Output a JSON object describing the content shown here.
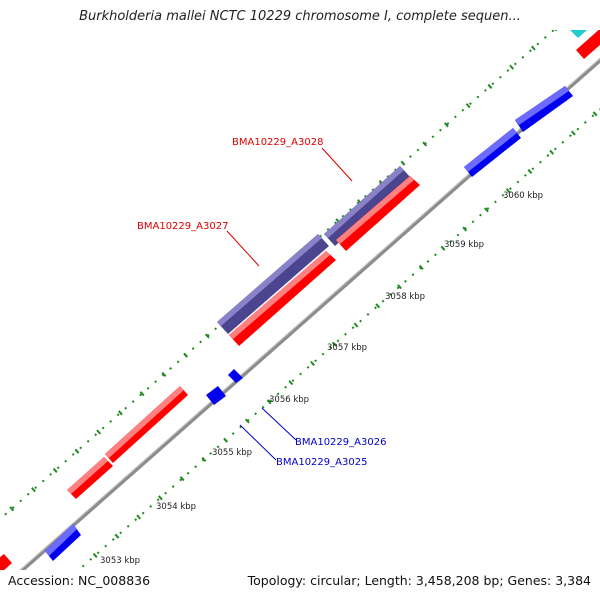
{
  "title": "Burkholderia mallei NCTC 10229 chromosome I, complete sequen...",
  "footer": {
    "accession": "Accession: NC_008836",
    "summary": "Topology: circular; Length: 3,458,208 bp; Genes: 3,384"
  },
  "colors": {
    "backbone": "#8c8c8c",
    "forward_cds": "#ff0000",
    "reverse_cds": "#0000ee",
    "feature_band": "#4b4590",
    "top_feature": "#22cccc",
    "tick": "#1f8a1f",
    "label_red": "#dd0000",
    "label_blue": "#0000cc"
  },
  "ticks": [
    "3053 kbp",
    "3054 kbp",
    "3055 kbp",
    "3056 kbp",
    "3057 kbp",
    "3058 kbp",
    "3059 kbp",
    "3060 kbp"
  ],
  "gene_labels": [
    {
      "text": "BMA10229_A3028",
      "color": "red"
    },
    {
      "text": "BMA10229_A3027",
      "color": "red"
    },
    {
      "text": "BMA10229_A3026",
      "color": "blue"
    },
    {
      "text": "BMA10229_A3025",
      "color": "blue"
    }
  ]
}
